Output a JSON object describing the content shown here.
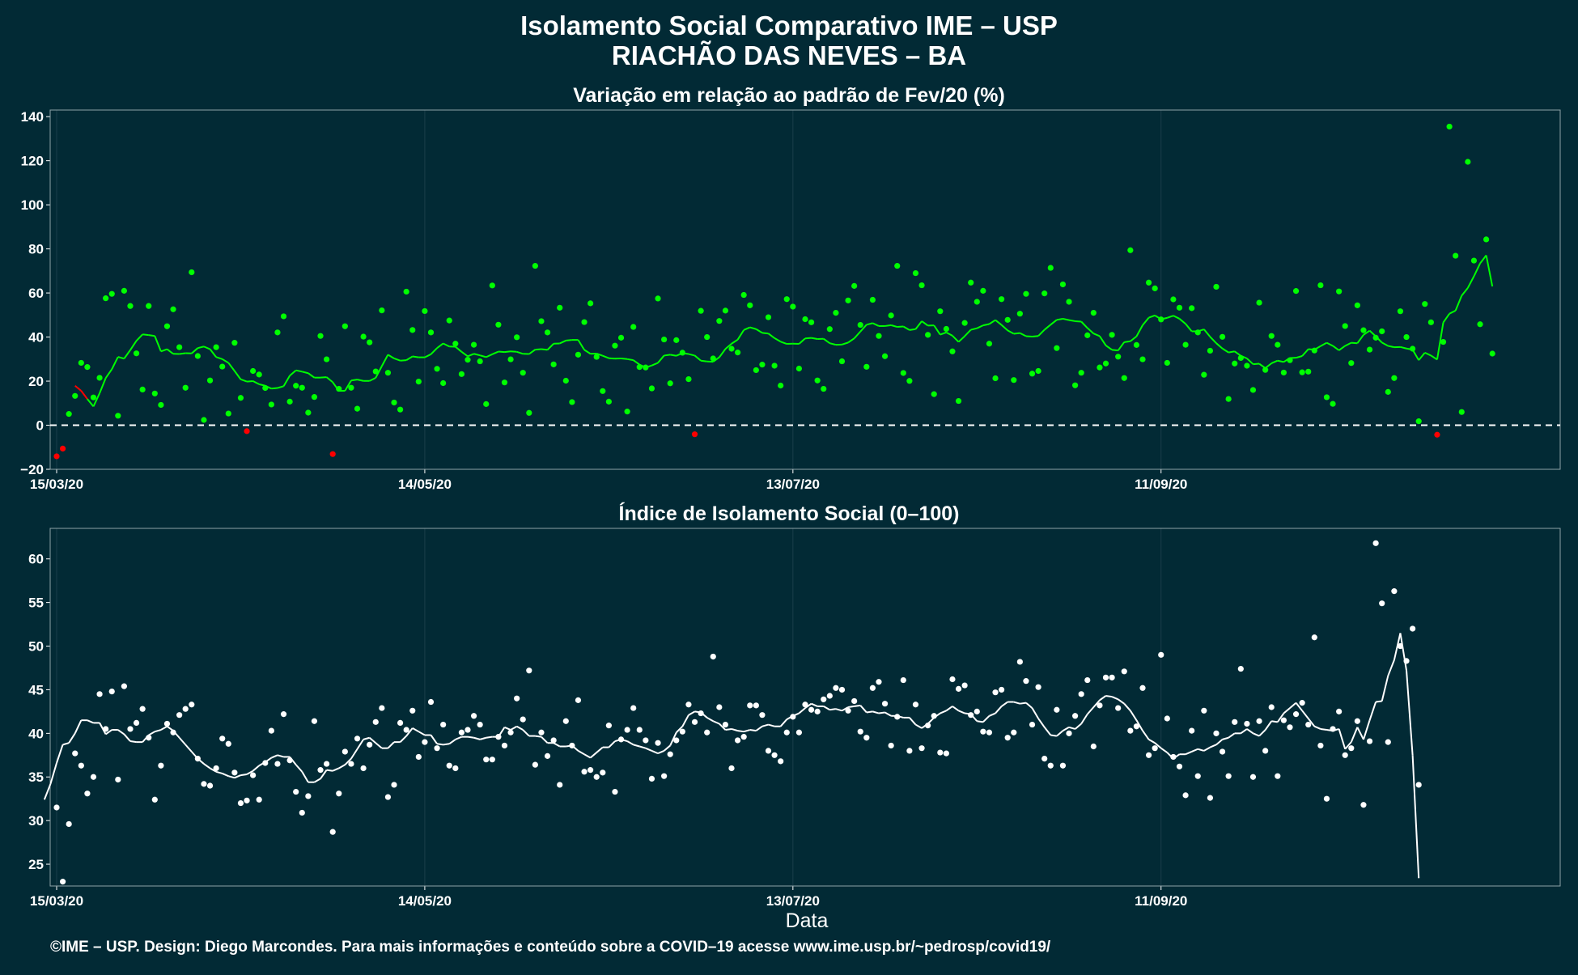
{
  "title": "Isolamento Social Comparativo IME – USP",
  "subtitle": "RIACHÃO DAS NEVES – BA",
  "xlabel": "Data",
  "footer": "©IME – USP. Design: Diego Marcondes. Para mais informações e conteúdo sobre a COVID–19 acesse www.ime.usp.br/~pedrosp/covid19/",
  "colors": {
    "background": "#022a35",
    "positive": "#00ff00",
    "negative": "#ff0000",
    "index": "#ffffff"
  },
  "chart_data": [
    {
      "type": "scatter",
      "title": "Variação em relação ao padrão de Fev/20 (%)",
      "x_ticks": [
        "15/03/20",
        "14/05/20",
        "13/07/20",
        "11/09/20"
      ],
      "y_ticks": [
        -20,
        0,
        20,
        40,
        60,
        80,
        100,
        120,
        140
      ],
      "ylim": [
        -20,
        143
      ],
      "x_start": "15/03/20",
      "x_end": "14/11/20",
      "reference_line": 0,
      "series": [
        {
          "points": "daily",
          "values": [
            -14.1,
            -10.6,
            5.1,
            13.3,
            28.3,
            26.4,
            12.6,
            21.5,
            57.6,
            59.6,
            4.3,
            61.0,
            54.1,
            32.6,
            16.2,
            54.1,
            14.4,
            9.2,
            44.9,
            52.6,
            35.4,
            17.0,
            69.4,
            31.4,
            2.4,
            20.3,
            35.4,
            26.6,
            5.3,
            37.4,
            12.4,
            -2.7,
            24.6,
            23.0,
            16.9,
            9.4,
            42.1,
            49.4,
            10.7,
            17.9,
            17.0,
            5.7,
            12.8,
            40.5,
            29.9,
            -13.1,
            16.5,
            44.9,
            17.0,
            7.5,
            40.2,
            37.6,
            24.4,
            52.1,
            23.8,
            10.3,
            7.1,
            60.6,
            43.2,
            19.8,
            51.8,
            42.1,
            25.6,
            19.1,
            47.5,
            37.0,
            23.2,
            29.7,
            36.5,
            29.0,
            9.6,
            63.4,
            45.6,
            19.4,
            29.9,
            39.9,
            23.8,
            5.6,
            72.3,
            47.2,
            42.1,
            27.6,
            53.3,
            20.2,
            10.5,
            32.0,
            46.8,
            55.3,
            31.0,
            15.5,
            10.7,
            36.1,
            39.7,
            6.2,
            44.6,
            26.4,
            26.2,
            16.7,
            57.5,
            38.9,
            19.0,
            38.6,
            32.9,
            20.9,
            -4.1,
            51.9,
            40.0,
            30.3,
            47.3,
            52.0,
            34.7,
            33.0,
            59.1,
            54.4,
            25.0,
            27.5,
            49.0,
            27.0,
            18.0,
            57.2,
            53.8,
            25.7,
            48.1,
            46.7,
            20.3,
            16.5,
            43.6,
            51.0,
            29.0,
            56.6,
            63.2,
            45.5,
            26.5,
            56.9,
            40.5,
            31.3,
            49.8,
            72.3,
            23.7,
            20.1,
            69.0,
            63.5,
            41.0,
            14.1,
            51.7,
            43.7,
            33.5,
            11.0,
            46.4,
            64.7,
            56.0,
            61.0,
            37.0,
            21.3,
            57.2,
            47.8,
            20.5,
            50.6,
            59.6,
            23.4,
            24.6,
            59.8,
            71.4,
            35.0,
            63.9,
            56.0,
            18.1,
            23.8,
            40.8,
            51.0,
            26.2,
            28.0,
            41.0,
            31.1,
            21.4,
            79.4,
            36.4,
            29.9,
            64.7,
            62.1,
            48.0,
            28.3,
            57.1,
            53.3,
            36.5,
            53.1,
            42.1,
            22.9,
            33.8,
            62.8,
            40.1,
            11.9,
            28.0,
            30.5,
            27.0,
            16.0,
            55.6,
            25.1,
            40.5,
            36.5,
            23.9,
            29.5,
            60.9,
            24.0,
            24.3,
            33.9,
            63.5,
            12.7,
            9.7,
            60.7,
            45.0,
            28.2,
            54.4,
            43.1,
            34.3,
            39.7,
            42.6,
            15.1,
            21.4,
            51.7,
            40.0,
            34.7,
            1.8,
            55.0,
            46.7,
            -4.3,
            37.8,
            135.5,
            76.9,
            6.0,
            119.5,
            74.7,
            45.8,
            84.3,
            32.5
          ]
        },
        {
          "line": "moving average",
          "values": [
            17.9,
            15.6,
            11.9,
            8.5,
            14.5,
            21.4,
            25.4,
            31.0,
            30.2,
            34.1,
            38.3,
            41.2,
            40.9,
            40.5,
            33.5,
            34.5,
            32.4,
            32.3,
            32.7,
            32.6,
            35.0,
            35.7,
            34.5,
            30.9,
            30.0,
            28.3,
            24.6,
            20.8,
            19.8,
            20.0,
            18.6,
            17.9,
            16.6,
            16.9,
            17.7,
            22.5,
            24.9,
            24.3,
            23.6,
            21.6,
            21.6,
            21.8,
            19.5,
            15.6,
            15.6,
            20.3,
            20.7,
            20.1,
            20.1,
            21.5,
            26.8,
            32.0,
            30.3,
            29.3,
            29.5,
            31.2,
            30.8,
            30.8,
            32.2,
            35.0,
            37.1,
            35.7,
            35.6,
            33.3,
            31.3,
            32.4,
            31.7,
            30.9,
            32.2,
            33.4,
            33.2,
            33.5,
            33.3,
            32.4,
            32.3,
            34.3,
            34.5,
            34.2,
            37.0,
            37.1,
            38.4,
            38.7,
            38.7,
            34.2,
            32.4,
            32.5,
            31.5,
            30.4,
            30.2,
            30.3,
            30.0,
            29.5,
            27.5,
            26.2,
            27.1,
            28.3,
            31.6,
            32.0,
            31.5,
            32.7,
            32.3,
            31.6,
            29.3,
            28.9,
            28.8,
            30.8,
            34.6,
            37.0,
            38.8,
            43.2,
            44.4,
            43.6,
            41.9,
            41.6,
            39.5,
            37.9,
            36.9,
            37.0,
            36.9,
            39.4,
            39.6,
            39.1,
            39.2,
            37.2,
            36.5,
            36.6,
            37.5,
            39.4,
            42.5,
            45.6,
            46.3,
            45.0,
            45.0,
            45.4,
            44.6,
            44.8,
            43.2,
            43.6,
            47.2,
            45.2,
            45.3,
            41.1,
            42.1,
            40.6,
            37.8,
            40.4,
            43.3,
            44.0,
            45.3,
            45.9,
            47.7,
            45.5,
            43.0,
            41.5,
            41.8,
            40.4,
            40.2,
            40.5,
            43.3,
            45.6,
            47.8,
            48.3,
            47.7,
            47.2,
            47.0,
            44.1,
            41.6,
            40.4,
            36.2,
            34.2,
            33.9,
            37.7,
            38.1,
            40.3,
            45.4,
            48.8,
            49.8,
            48.1,
            48.7,
            49.7,
            48.3,
            46.0,
            42.6,
            42.6,
            43.5,
            40.1,
            37.2,
            34.8,
            33.0,
            33.5,
            31.5,
            30.3,
            27.7,
            27.9,
            25.9,
            28.1,
            29.3,
            28.7,
            30.5,
            30.6,
            31.4,
            34.5,
            34.3,
            35.9,
            37.4,
            36.0,
            34.0,
            36.0,
            37.4,
            37.2,
            41.0,
            42.9,
            40.3,
            37.5,
            36.0,
            35.4,
            35.5,
            34.8,
            34.3,
            29.5,
            32.9,
            31.6,
            29.8,
            46.6,
            50.6,
            52.0,
            58.8,
            62.3,
            67.6,
            73.4,
            77.1,
            63.0
          ]
        }
      ]
    },
    {
      "type": "scatter",
      "title": "Índice de Isolamento Social (0–100)",
      "x_ticks": [
        "15/03/20",
        "14/05/20",
        "13/07/20",
        "11/09/20"
      ],
      "y_ticks": [
        25,
        30,
        35,
        40,
        45,
        50,
        55,
        60
      ],
      "ylim": [
        22.5,
        63.5
      ],
      "x_start": "15/03/20",
      "x_end": "14/11/20",
      "series": [
        {
          "points": "daily",
          "values": [
            31.5,
            23.0,
            29.6,
            37.7,
            36.3,
            33.1,
            35.0,
            44.5,
            40.5,
            44.8,
            34.7,
            45.4,
            40.5,
            41.2,
            42.8,
            39.5,
            32.4,
            36.3,
            41.1,
            40.1,
            42.1,
            42.8,
            43.3,
            37.1,
            34.2,
            34.0,
            36.0,
            39.4,
            38.8,
            35.5,
            32.0,
            32.3,
            35.2,
            32.4,
            36.6,
            40.3,
            36.5,
            42.2,
            36.9,
            33.3,
            30.9,
            32.8,
            41.4,
            35.8,
            36.5,
            28.7,
            33.1,
            37.9,
            36.5,
            39.4,
            36.0,
            38.7,
            41.3,
            42.9,
            32.7,
            34.1,
            41.2,
            40.4,
            42.6,
            37.3,
            39.0,
            43.6,
            38.3,
            41.0,
            36.3,
            36.0,
            40.1,
            40.4,
            42.0,
            41.0,
            37.0,
            37.0,
            39.6,
            38.6,
            40.1,
            44.0,
            41.6,
            47.2,
            36.4,
            40.1,
            37.4,
            39.2,
            34.1,
            41.4,
            38.6,
            43.8,
            35.6,
            35.8,
            35.0,
            35.5,
            40.9,
            33.3,
            39.3,
            40.4,
            42.9,
            40.4,
            39.2,
            34.8,
            38.9,
            35.1,
            37.6,
            39.2,
            40.2,
            43.3,
            41.3,
            42.3,
            40.1,
            48.8,
            43.0,
            41.0,
            36.0,
            39.2,
            39.6,
            43.2,
            43.2,
            42.1,
            38.0,
            37.5,
            36.8,
            40.1,
            41.9,
            40.1,
            43.3,
            42.7,
            42.5,
            43.9,
            44.3,
            45.2,
            45.0,
            42.6,
            43.7,
            40.2,
            39.5,
            45.2,
            45.9,
            43.4,
            38.6,
            41.9,
            46.1,
            38.0,
            43.3,
            38.3,
            40.9,
            42.0,
            37.8,
            37.7,
            46.2,
            45.1,
            45.5,
            42.1,
            42.5,
            40.2,
            40.1,
            44.7,
            45.0,
            39.5,
            40.1,
            48.2,
            46.0,
            41.0,
            45.3,
            37.1,
            36.3,
            42.7,
            36.3,
            40.0,
            42.0,
            44.5,
            46.1,
            38.5,
            43.2,
            46.4,
            46.4,
            42.9,
            47.1,
            40.3,
            40.8,
            45.2,
            37.5,
            38.3,
            49.0,
            41.7,
            37.3,
            36.2,
            32.9,
            40.3,
            35.1,
            42.6,
            32.6,
            40.0,
            37.9,
            35.1,
            41.3,
            47.4,
            41.1,
            35.0,
            41.4,
            38.0,
            43.0,
            35.1,
            41.5,
            40.7,
            42.2,
            43.5,
            41.0,
            51.0,
            38.6,
            32.5,
            40.5,
            42.5,
            37.5,
            38.3,
            41.4,
            31.8,
            39.1,
            61.8,
            54.9,
            39.0,
            56.3,
            50.0,
            48.3,
            52.0,
            34.1
          ]
        },
        {
          "line": "moving average",
          "values": [
            32.4,
            34.2,
            36.6,
            38.7,
            38.9,
            40.0,
            41.5,
            41.5,
            41.2,
            41.2,
            39.9,
            40.4,
            40.4,
            39.9,
            39.1,
            39.0,
            39.0,
            39.8,
            40.2,
            40.4,
            40.8,
            40.3,
            39.5,
            38.7,
            37.9,
            37.1,
            36.5,
            36.0,
            35.6,
            35.4,
            35.1,
            34.9,
            35.2,
            35.3,
            35.7,
            36.3,
            36.7,
            37.2,
            37.5,
            37.3,
            37.3,
            36.4,
            35.6,
            34.4,
            34.4,
            34.8,
            35.8,
            35.7,
            36.0,
            36.4,
            37.1,
            38.2,
            39.3,
            39.5,
            38.9,
            38.3,
            38.3,
            39.0,
            39.0,
            39.7,
            40.6,
            40.2,
            39.8,
            39.8,
            38.8,
            38.7,
            38.8,
            39.3,
            39.6,
            39.6,
            39.5,
            39.3,
            39.5,
            39.6,
            39.6,
            40.7,
            40.4,
            40.8,
            40.4,
            39.7,
            39.7,
            39.6,
            38.9,
            38.9,
            38.5,
            38.5,
            38.6,
            38.0,
            37.6,
            37.2,
            37.8,
            38.4,
            38.4,
            39.1,
            39.3,
            39.1,
            38.7,
            38.5,
            38.3,
            38.0,
            37.7,
            38.0,
            38.6,
            40.1,
            40.8,
            42.1,
            42.5,
            42.4,
            41.8,
            41.4,
            41.1,
            40.4,
            40.5,
            40.3,
            40.2,
            40.4,
            40.3,
            40.8,
            41.0,
            40.8,
            40.8,
            41.6,
            42.0,
            42.3,
            42.9,
            43.4,
            43.1,
            43.1,
            42.7,
            42.8,
            42.6,
            43.0,
            43.1,
            43.2,
            42.4,
            42.5,
            42.3,
            42.4,
            42.0,
            42.0,
            41.8,
            41.8,
            41.0,
            40.6,
            41.1,
            41.8,
            42.3,
            42.6,
            43.1,
            42.6,
            42.3,
            42.2,
            41.4,
            41.3,
            42.0,
            42.3,
            43.1,
            43.6,
            43.6,
            43.4,
            43.5,
            42.9,
            41.7,
            40.7,
            39.8,
            39.7,
            40.3,
            40.7,
            40.5,
            41.1,
            42.2,
            43.0,
            43.8,
            44.3,
            44.2,
            43.9,
            43.4,
            42.6,
            41.5,
            40.3,
            39.3,
            38.9,
            38.3,
            37.8,
            37.1,
            37.6,
            37.6,
            37.9,
            38.2,
            38.0,
            38.4,
            38.7,
            39.3,
            39.5,
            40.0,
            40.0,
            40.5,
            40.0,
            39.7,
            40.4,
            41.4,
            41.3,
            42.3,
            42.9,
            43.5,
            42.6,
            41.7,
            40.8,
            40.5,
            40.4,
            40.3,
            40.5,
            38.2,
            39.0,
            40.7,
            39.3,
            41.5,
            43.6,
            43.7,
            46.6,
            48.4,
            51.5,
            47.2,
            37.5,
            23.4
          ]
        }
      ]
    }
  ]
}
